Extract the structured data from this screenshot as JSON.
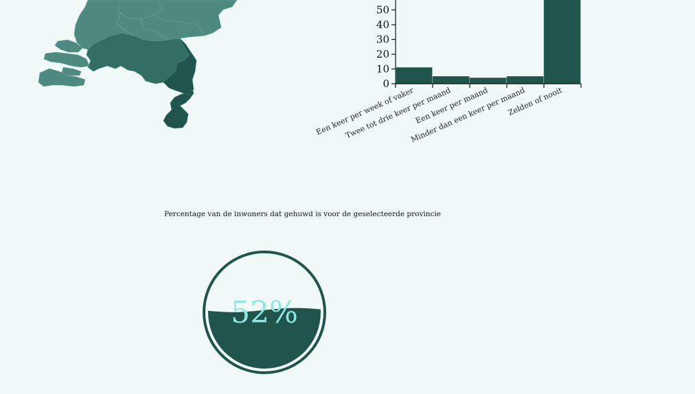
{
  "colors": {
    "background": "#f0f9f7",
    "primary": "#20544d",
    "map_light": "#4e8a80",
    "map_mid": "#336d64",
    "map_dark": "#20544d",
    "gauge_text": "#8ee8e0"
  },
  "map": {
    "region_names": [
      "provincie-noord",
      "provincie-midden",
      "provincie-zuid-west",
      "provincie-zuid-oost",
      "provincie-limburg"
    ]
  },
  "chart_data": [
    {
      "type": "bar",
      "categories": [
        "Een keer per week of vaker",
        "Twee tot drie keer per maand",
        "Een keer per maand",
        "Minder dan een keer per maand",
        "Zelden of nooit"
      ],
      "values": [
        11,
        5,
        4,
        5,
        63
      ],
      "yticks": [
        0,
        10,
        20,
        30,
        40,
        50
      ],
      "ylim": [
        0,
        63
      ],
      "title": "",
      "xlabel": "",
      "ylabel": ""
    },
    {
      "type": "gauge",
      "title": "Percentage van de inwoners dat gehuwd is voor de geselecteerde provincie",
      "value": 52,
      "value_label": "52%",
      "max": 100
    }
  ]
}
